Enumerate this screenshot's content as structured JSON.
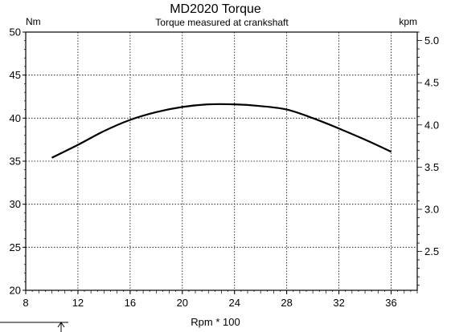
{
  "chart_data": {
    "type": "line",
    "title": "MD2020 Torque",
    "subtitle": "Torque measured at crankshaft",
    "ylabel_left": "Nm",
    "ylabel_right": "kpm",
    "xlabel": "Rpm * 100",
    "xlim": [
      8,
      38
    ],
    "ylim": [
      20,
      50
    ],
    "ylim_right": [
      2.04,
      5.1
    ],
    "xticks": [
      "8",
      "12",
      "16",
      "20",
      "24",
      "28",
      "32",
      "36"
    ],
    "yticks_left": [
      "20",
      "25",
      "30",
      "35",
      "40",
      "45",
      "50"
    ],
    "yticks_right": [
      "2.5",
      "3.0",
      "3.5",
      "4.0",
      "4.5",
      "5.0"
    ],
    "grid": true,
    "series": [
      {
        "x": [
          10,
          12,
          14,
          16,
          18,
          20,
          22,
          24,
          26,
          28,
          30,
          32,
          34,
          36
        ],
        "y": [
          35.4,
          36.9,
          38.5,
          39.8,
          40.7,
          41.3,
          41.6,
          41.6,
          41.4,
          41.0,
          40.0,
          38.8,
          37.5,
          36.1
        ]
      }
    ]
  }
}
